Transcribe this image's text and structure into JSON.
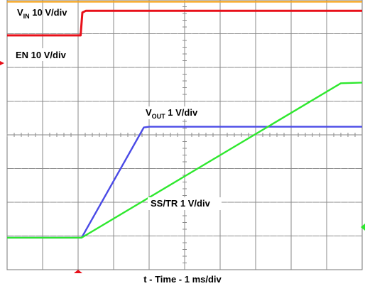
{
  "chart_data": {
    "type": "line",
    "grid": true,
    "divisions": {
      "x": 10,
      "y": 8
    },
    "xlabel": "t - Time - 1 ms/div",
    "time_per_div_ms": 1,
    "series": [
      {
        "name_main": "V",
        "name_sub": "IN",
        "name_suffix": " 10 V/div",
        "color": "#f5a623",
        "points": [
          [
            0,
            7.95
          ],
          [
            10,
            7.95
          ]
        ]
      },
      {
        "name_main": "EN 10 V/div",
        "name_sub": "",
        "name_suffix": "",
        "color": "#e8101a",
        "points": [
          [
            0,
            6.95
          ],
          [
            2.07,
            6.95
          ],
          [
            2.12,
            7.63
          ],
          [
            2.22,
            7.68
          ],
          [
            10,
            7.68
          ]
        ]
      },
      {
        "name_main": "V",
        "name_sub": "OUT",
        "name_suffix": " 1 V/div",
        "color": "#4a4ae6",
        "points": [
          [
            0,
            0.95
          ],
          [
            2.1,
            0.95
          ],
          [
            3.85,
            4.22
          ],
          [
            4.0,
            4.24
          ],
          [
            10,
            4.24
          ]
        ]
      },
      {
        "name_main": "SS/TR 1 V/div",
        "name_sub": "",
        "name_suffix": "",
        "color": "#2ee82e",
        "points": [
          [
            0,
            0.95
          ],
          [
            2.1,
            0.95
          ],
          [
            9.4,
            5.53
          ],
          [
            10,
            5.55
          ]
        ]
      }
    ]
  }
}
